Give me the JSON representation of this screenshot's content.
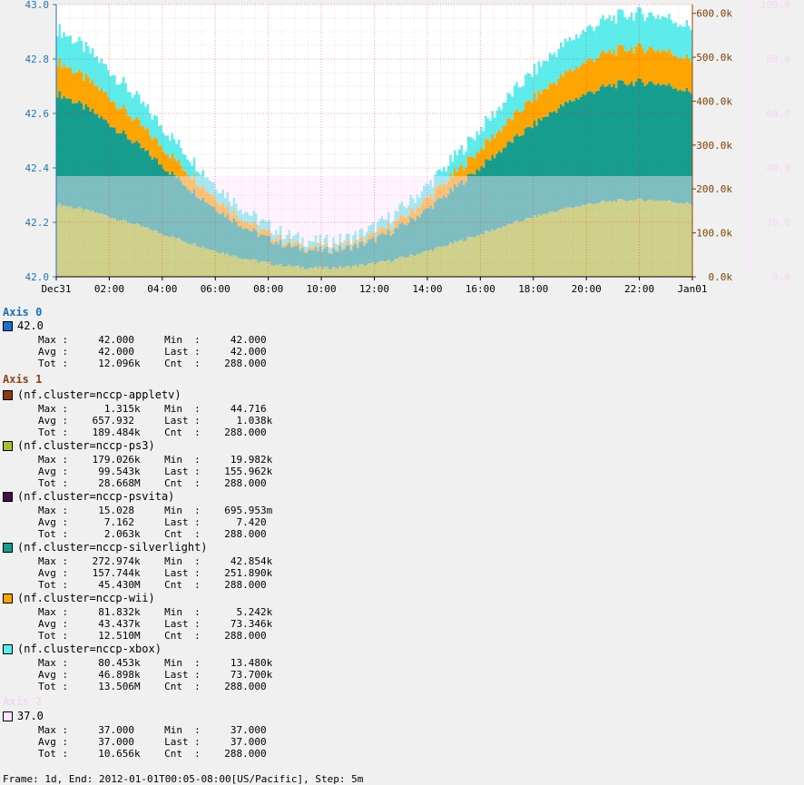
{
  "chart_data": {
    "type": "area",
    "stacked": true,
    "x_ticks": [
      "Dec31",
      "02:00",
      "04:00",
      "06:00",
      "08:00",
      "10:00",
      "12:00",
      "14:00",
      "16:00",
      "18:00",
      "20:00",
      "22:00",
      "Jan01"
    ],
    "axis0": {
      "ticks": [
        "42.0",
        "42.2",
        "42.4",
        "42.6",
        "42.8",
        "43.0"
      ],
      "ylim": [
        42.0,
        43.0
      ],
      "color": "#1f77b4"
    },
    "axis1": {
      "ticks": [
        "0.0k",
        "100.0k",
        "200.0k",
        "300.0k",
        "400.0k",
        "500.0k",
        "600.0k"
      ],
      "ylim": [
        0,
        620000
      ],
      "color": "#7f3f00"
    },
    "axis2": {
      "ticks": [
        "0.0",
        "20.0",
        "40.0",
        "60.0",
        "80.0",
        "100.0"
      ],
      "ylim": [
        0,
        100
      ],
      "color": "#f5d5f5"
    },
    "series_colors": {
      "ps3": "#a8c02a",
      "silverlight": "#159e8e",
      "wii": "#ffa500",
      "xbox": "#5cecec",
      "axis2_band": "#ffe4ff"
    }
  },
  "legend": {
    "axis0_title": "Axis 0",
    "axis1_title": "Axis 1",
    "axis2_title": "Axis 2",
    "entries": [
      {
        "name": "42.0",
        "color": "#1a6fd0",
        "group": 0,
        "stats": [
          "Max :     42.000     Min  :     42.000",
          "Avg :     42.000     Last :     42.000",
          "Tot :     12.096k    Cnt  :    288.000"
        ]
      },
      {
        "name": "(nf.cluster=nccp-appletv)",
        "color": "#8b3a0e",
        "group": 1,
        "stats": [
          "Max :      1.315k    Min  :     44.716",
          "Avg :    657.932     Last :      1.038k",
          "Tot :    189.484k    Cnt  :    288.000"
        ]
      },
      {
        "name": "(nf.cluster=nccp-ps3)",
        "color": "#a8c02a",
        "group": 1,
        "stats": [
          "Max :    179.026k    Min  :     19.982k",
          "Avg :     99.543k    Last :    155.962k",
          "Tot :     28.668M    Cnt  :    288.000"
        ]
      },
      {
        "name": "(nf.cluster=nccp-psvita)",
        "color": "#4b0a4b",
        "group": 1,
        "stats": [
          "Max :     15.028     Min  :    695.953m",
          "Avg :      7.162     Last :      7.420",
          "Tot :      2.063k    Cnt  :    288.000"
        ]
      },
      {
        "name": "(nf.cluster=nccp-silverlight)",
        "color": "#159e8e",
        "group": 1,
        "stats": [
          "Max :    272.974k    Min  :     42.854k",
          "Avg :    157.744k    Last :    251.890k",
          "Tot :     45.430M    Cnt  :    288.000"
        ]
      },
      {
        "name": "(nf.cluster=nccp-wii)",
        "color": "#ffa500",
        "group": 1,
        "stats": [
          "Max :     81.832k    Min  :      5.242k",
          "Avg :     43.437k    Last :     73.346k",
          "Tot :     12.510M    Cnt  :    288.000"
        ]
      },
      {
        "name": "(nf.cluster=nccp-xbox)",
        "color": "#5cecec",
        "group": 1,
        "stats": [
          "Max :     80.453k    Min  :     13.480k",
          "Avg :     46.898k    Last :     73.700k",
          "Tot :     13.506M    Cnt  :    288.000"
        ]
      },
      {
        "name": "37.0",
        "color": "#ffe4ff",
        "group": 2,
        "stats": [
          "Max :     37.000     Min  :     37.000",
          "Avg :     37.000     Last :     37.000",
          "Tot :     10.656k    Cnt  :    288.000"
        ]
      }
    ]
  },
  "footer": "Frame: 1d, End: 2012-01-01T00:05-08:00[US/Pacific], Step: 5m"
}
